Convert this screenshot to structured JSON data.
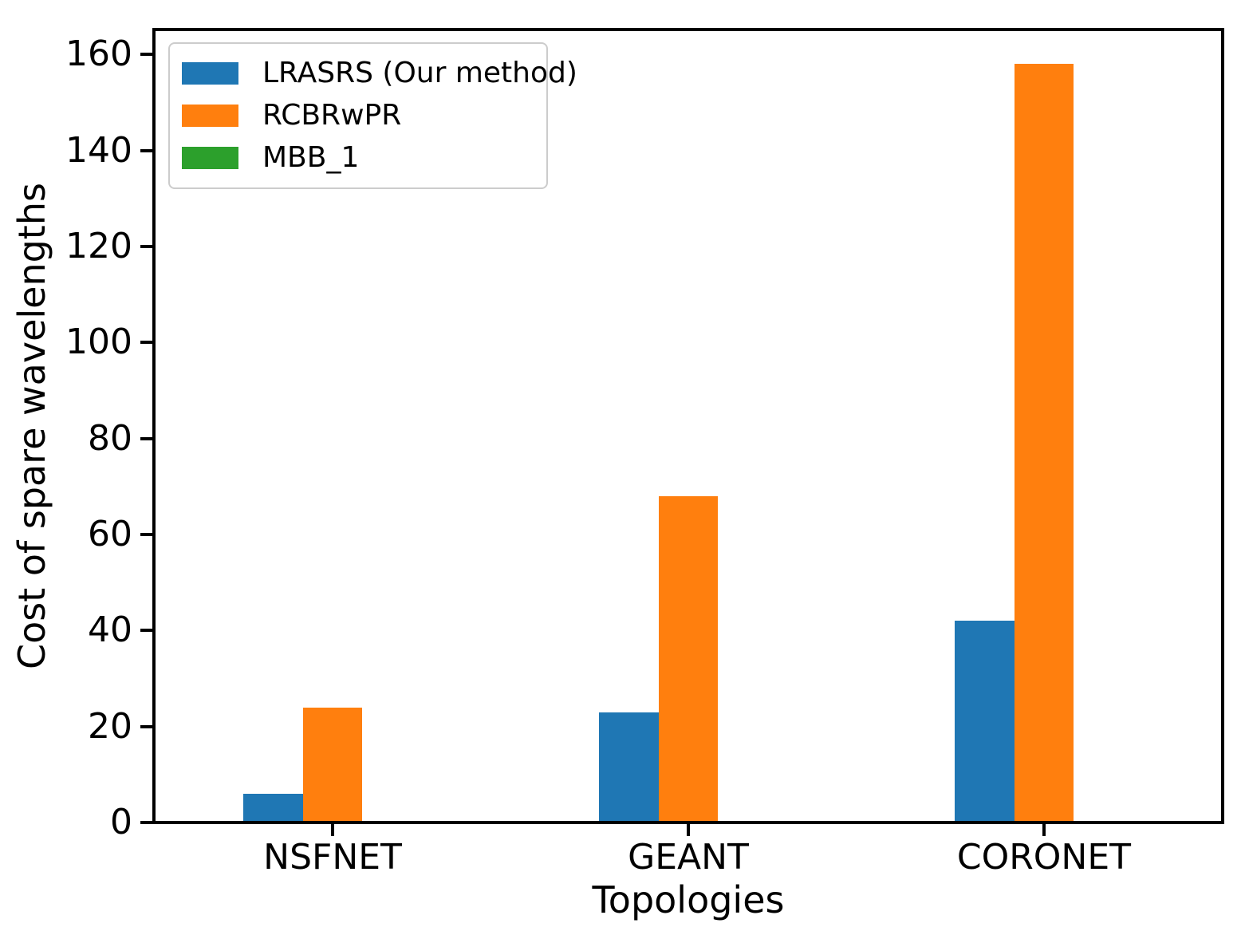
{
  "figure": {
    "background": "#ffffff"
  },
  "chart_data": {
    "type": "bar",
    "title": "",
    "xlabel": "Topologies",
    "ylabel": "Cost of spare wavelengths",
    "categories": [
      "NSFNET",
      "GEANT",
      "CORONET"
    ],
    "series": [
      {
        "name": "LRASRS (Our method)",
        "color": "#1f77b4",
        "values": [
          6,
          23,
          42
        ]
      },
      {
        "name": "RCBRwPR",
        "color": "#ff7f0e",
        "values": [
          24,
          68,
          158
        ]
      },
      {
        "name": "MBB_1",
        "color": "#2ca02c",
        "values": [
          0,
          0,
          0
        ]
      }
    ],
    "yticks": [
      0,
      20,
      40,
      60,
      80,
      100,
      120,
      140,
      160
    ],
    "ylim": [
      0,
      165.2
    ],
    "grid": false,
    "legend_position": "upper-left",
    "axis_color": "#000000"
  }
}
